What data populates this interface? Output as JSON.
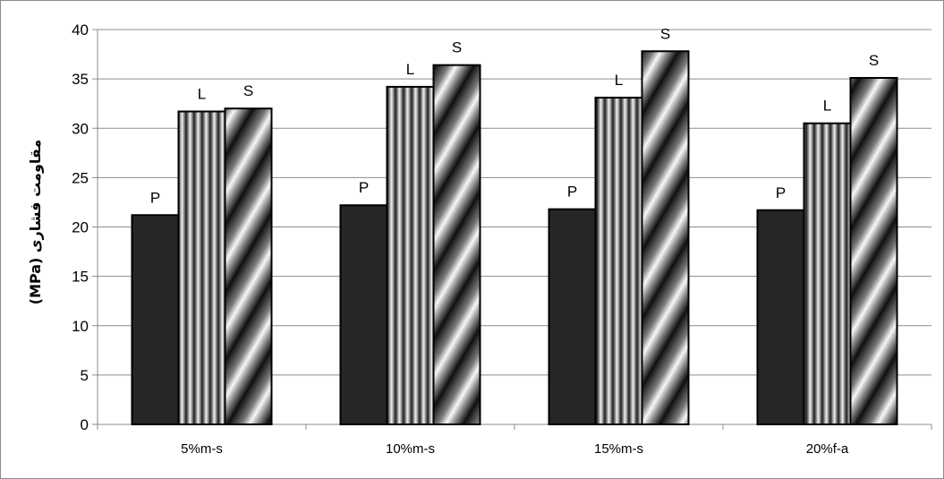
{
  "chart_data": {
    "type": "bar",
    "title": "",
    "xlabel": "",
    "ylabel": "مقاومت فشاری (MPa)",
    "ylim": [
      0,
      40
    ],
    "yticks": [
      0,
      5,
      10,
      15,
      20,
      25,
      30,
      35,
      40
    ],
    "categories": [
      "5%m-s",
      "10%m-s",
      "15%m-s",
      "20%f-a"
    ],
    "series": [
      {
        "label": "P",
        "values": [
          21.2,
          22.2,
          21.8,
          21.7
        ],
        "fill": "solid",
        "color": "#262626"
      },
      {
        "label": "L",
        "values": [
          31.7,
          34.2,
          33.1,
          30.5
        ],
        "fill": "vertical-stripes",
        "color": "#2a2a2a"
      },
      {
        "label": "S",
        "values": [
          32.0,
          36.4,
          37.8,
          35.1
        ],
        "fill": "diagonal-gradient",
        "color": "#1a1a1a"
      }
    ],
    "grid": true,
    "legend": "none",
    "colors": {
      "gridline": "#8c8c8c",
      "axis": "#8c8c8c",
      "bar_outline": "#000000"
    }
  }
}
